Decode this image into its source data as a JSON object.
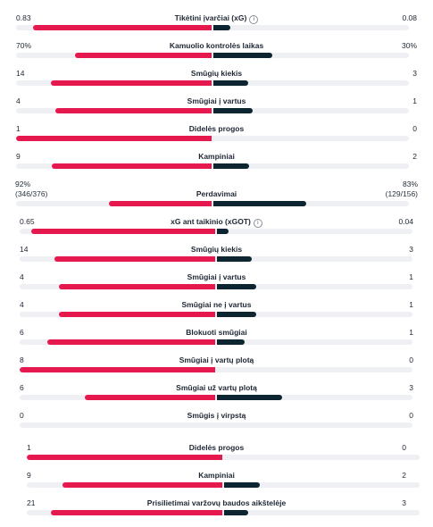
{
  "colors": {
    "home": "#e6194e",
    "away": "#0d2530",
    "track": "#eef0f3"
  },
  "stats": [
    {
      "label": "Tikėtini įvarčiai (xG)",
      "home": "0.83",
      "away": "0.08",
      "home_share": 0.912,
      "info": true
    },
    {
      "label": "Kamuolio kontrolės laikas",
      "home": "70%",
      "away": "30%",
      "home_share": 0.7
    },
    {
      "label": "Smūgių kiekis",
      "home": "14",
      "away": "3",
      "home_share": 0.824
    },
    {
      "label": "Smūgiai į vartus",
      "home": "4",
      "away": "1",
      "home_share": 0.8
    },
    {
      "label": "Didelės progos",
      "home": "1",
      "away": "0",
      "home_share": 1.0
    },
    {
      "label": "Kampiniai",
      "home": "9",
      "away": "2",
      "home_share": 0.818
    },
    {
      "label": "Perdavimai",
      "home": "92%",
      "away": "83%",
      "home_sub": "(346/376)",
      "away_sub": "(129/156)",
      "home_share": 0.526
    },
    {
      "label": "xG ant taikinio (xGOT)",
      "home": "0.65",
      "away": "0.04",
      "home_share": 0.942,
      "info": true
    },
    {
      "label": "Smūgių kiekis",
      "home": "14",
      "away": "3",
      "home_share": 0.824
    },
    {
      "label": "Smūgiai į vartus",
      "home": "4",
      "away": "1",
      "home_share": 0.8
    },
    {
      "label": "Smūgiai ne į vartus",
      "home": "4",
      "away": "1",
      "home_share": 0.8
    },
    {
      "label": "Blokuoti smūgiai",
      "home": "6",
      "away": "1",
      "home_share": 0.857
    },
    {
      "label": "Smūgiai į vartų plotą",
      "home": "8",
      "away": "0",
      "home_share": 1.0
    },
    {
      "label": "Smūgiai už vartų plotą",
      "home": "6",
      "away": "3",
      "home_share": 0.667
    },
    {
      "label": "Smūgis į virpstą",
      "home": "0",
      "away": "0",
      "home_share": 0.5,
      "empty": true
    },
    {
      "label": "Didelės progos",
      "home": "1",
      "away": "0",
      "home_share": 1.0
    },
    {
      "label": "Kampiniai",
      "home": "9",
      "away": "2",
      "home_share": 0.818
    },
    {
      "label": "Prisilietimai varžovų baudos aikštelėje",
      "home": "21",
      "away": "3",
      "home_share": 0.875
    }
  ]
}
